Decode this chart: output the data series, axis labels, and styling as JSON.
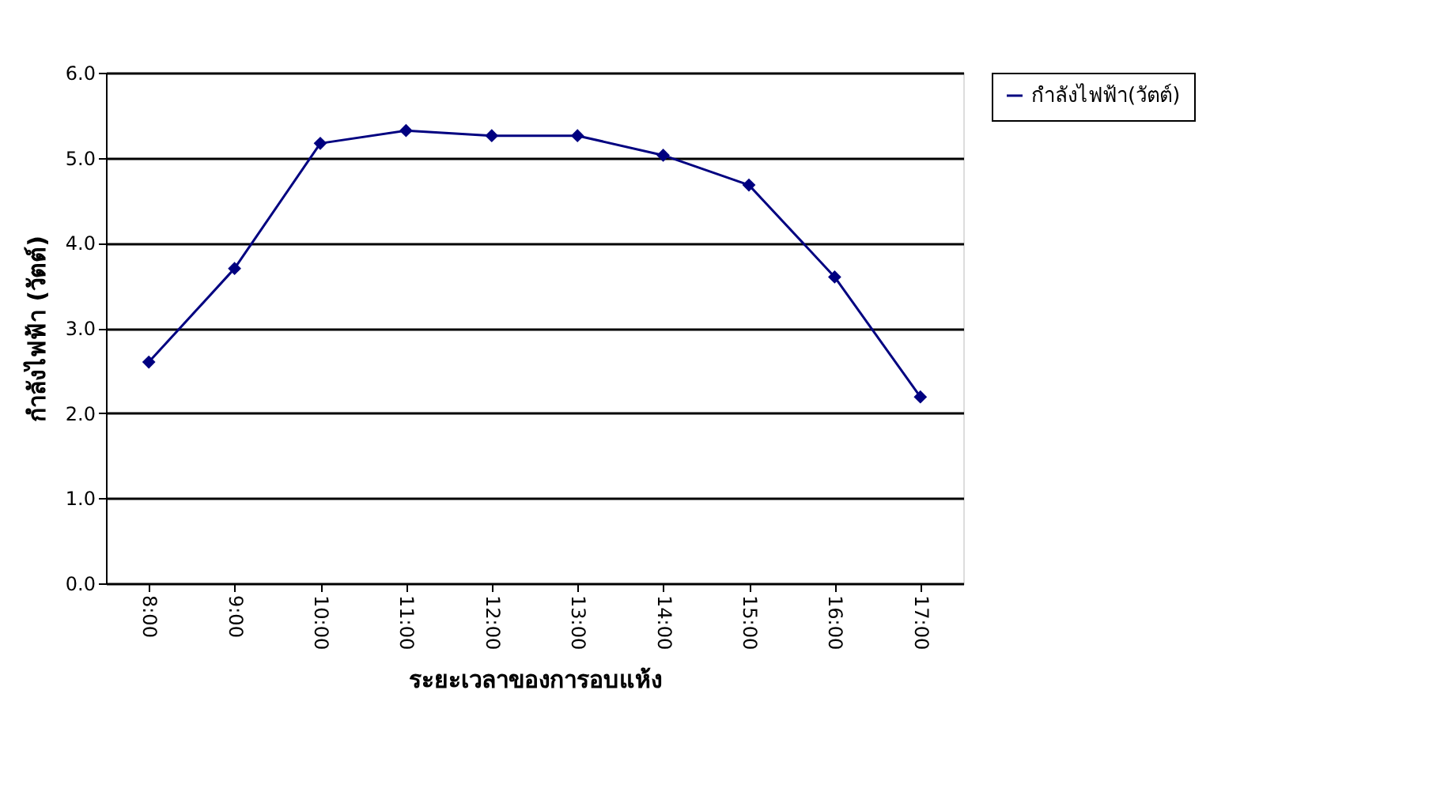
{
  "chart_data": {
    "type": "line",
    "categories": [
      "8:00",
      "9:00",
      "10:00",
      "11:00",
      "12:00",
      "13:00",
      "14:00",
      "15:00",
      "16:00",
      "17:00"
    ],
    "series": [
      {
        "name": "กำลังไฟฟ้า(วัตต์)",
        "color": "#000080",
        "values": [
          2.6,
          3.7,
          5.17,
          5.32,
          5.26,
          5.26,
          5.03,
          4.68,
          3.6,
          2.19
        ]
      }
    ],
    "xlabel": "ระยะเวลาของการอบแห้ง",
    "ylabel": "กำลังไฟฟ้า (วัตต์)",
    "ylim": [
      0,
      6
    ],
    "yticks": [
      {
        "value": 0,
        "label": "0.0"
      },
      {
        "value": 1,
        "label": "1.0"
      },
      {
        "value": 2,
        "label": "2.0"
      },
      {
        "value": 3,
        "label": "3.0"
      },
      {
        "value": 4,
        "label": "4.0"
      },
      {
        "value": 5,
        "label": "5.0"
      },
      {
        "value": 6,
        "label": "6.0"
      }
    ],
    "grid": "y",
    "legend": "right",
    "marker": "diamond",
    "line_style": "solid"
  }
}
